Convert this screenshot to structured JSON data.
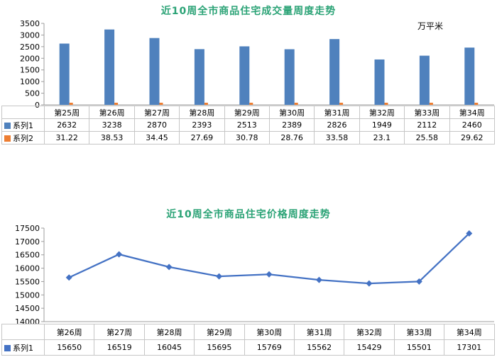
{
  "page": {
    "background": "#ffffff"
  },
  "chart_data": [
    {
      "type": "bar",
      "title": "近10周全市商品住宅成交量周度走势",
      "title_color": "#2BA376",
      "unit": "万平米",
      "categories": [
        "第25周",
        "第26周",
        "第27周",
        "第28周",
        "第29周",
        "第30周",
        "第31周",
        "第32周",
        "第33周",
        "第34周"
      ],
      "series": [
        {
          "name": "系列1",
          "color": "#4F81BD",
          "values": [
            2632,
            3238,
            2870,
            2393,
            2513,
            2389,
            2826,
            1949,
            2112,
            2460
          ]
        },
        {
          "name": "系列2",
          "color": "#ED7D31",
          "values": [
            31.22,
            38.53,
            34.45,
            27.69,
            30.78,
            28.76,
            33.58,
            23.1,
            25.58,
            29.62
          ]
        }
      ],
      "ylim": [
        0,
        3500
      ],
      "ystep": 500,
      "grid": false,
      "legend_position": "table-left",
      "axis_color": "#9c9c9c"
    },
    {
      "type": "line",
      "title": "近10周全市商品住宅价格周度走势",
      "title_color": "#2BA376",
      "categories": [
        "第26周",
        "第27周",
        "第28周",
        "第29周",
        "第30周",
        "第31周",
        "第32周",
        "第33周",
        "第34周"
      ],
      "series": [
        {
          "name": "系列1",
          "color": "#4472C4",
          "values": [
            15650,
            16519,
            16045,
            15695,
            15769,
            15562,
            15429,
            15501,
            17301
          ]
        }
      ],
      "ylim": [
        14000,
        17500
      ],
      "ystep": 500,
      "grid": false,
      "legend_position": "table-left",
      "axis_color": "#9c9c9c",
      "marker": "diamond"
    }
  ]
}
